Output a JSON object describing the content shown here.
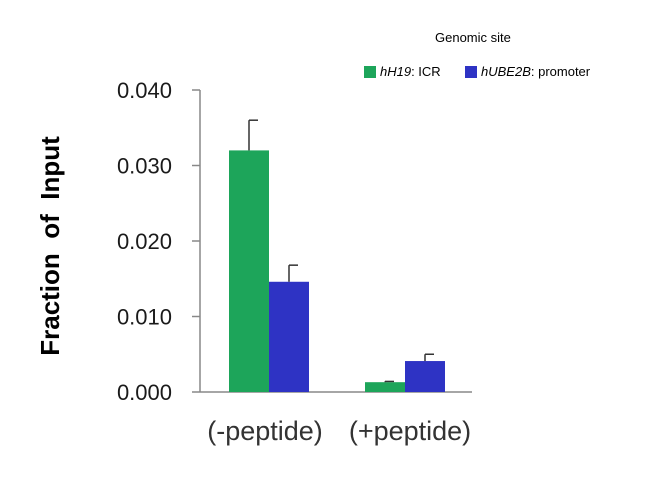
{
  "chart_data": {
    "type": "bar",
    "title": "",
    "xlabel": "",
    "ylabel": "Fraction  of  Input",
    "ylim": [
      0,
      0.04
    ],
    "yticks": [
      "0.000",
      "0.010",
      "0.020",
      "0.030",
      "0.040"
    ],
    "categories": [
      "(-peptide)",
      "(+peptide)"
    ],
    "legend": {
      "title": "Genomic site",
      "placement": "top-right"
    },
    "series": [
      {
        "name": "hH19: ICR",
        "name_italic": "hH19",
        "name_rest": ": ICR",
        "color": "#1DA55A",
        "values": [
          0.032,
          0.0013
        ],
        "errors": [
          0.004,
          0.0001
        ]
      },
      {
        "name": "hUBE2B: promoter",
        "name_italic": "hUBE2B",
        "name_rest": ": promoter",
        "color": "#2E33C4",
        "values": [
          0.0146,
          0.0041
        ],
        "errors": [
          0.0022,
          0.0009
        ]
      }
    ],
    "grid": false
  }
}
